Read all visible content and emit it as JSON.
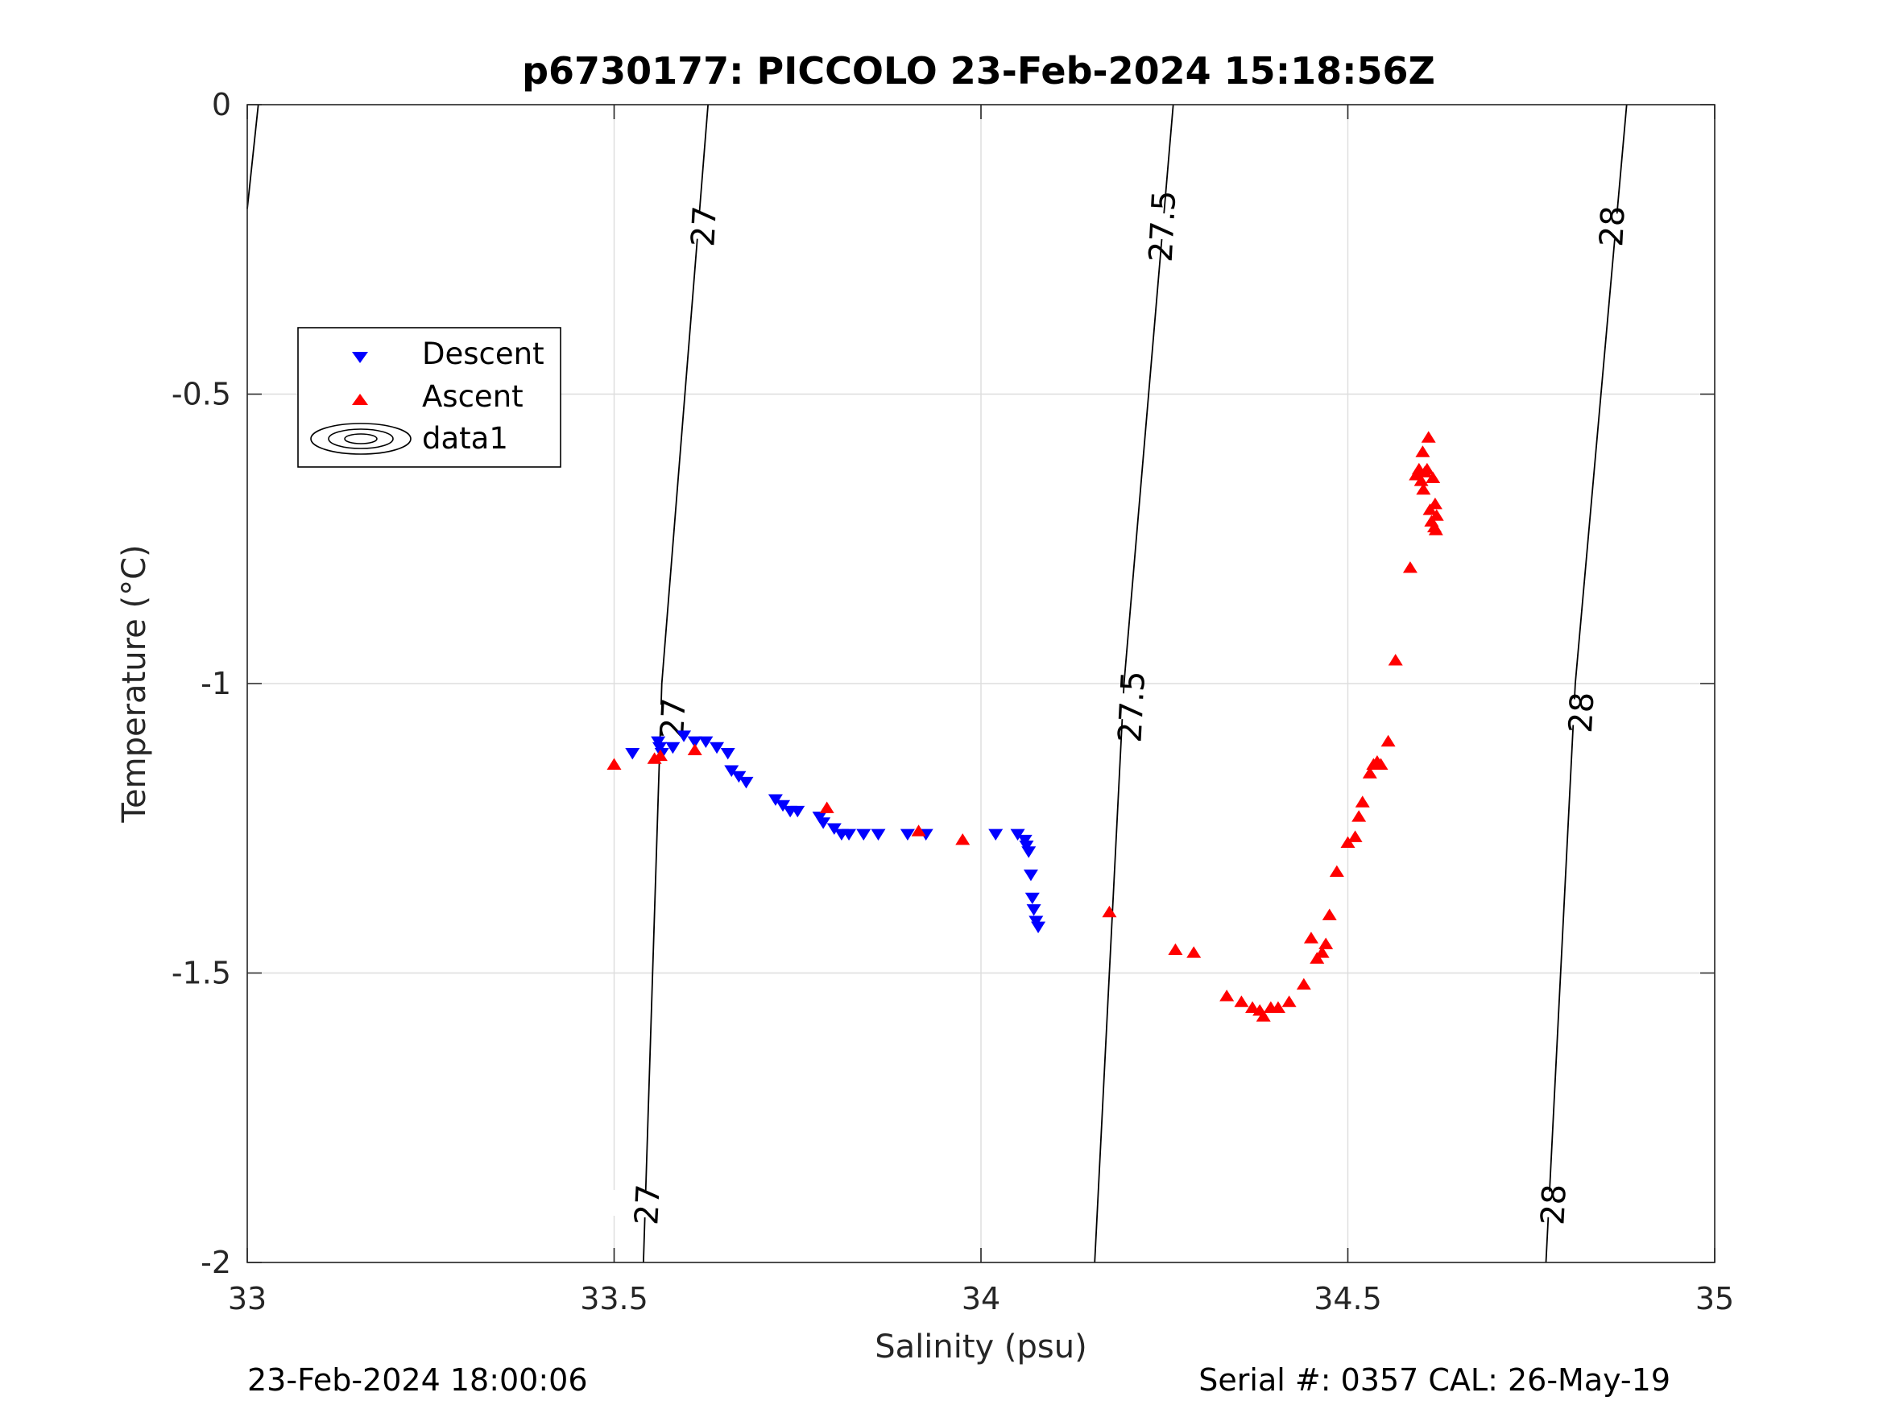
{
  "chart_data": {
    "type": "scatter",
    "title": "p6730177: PICCOLO 23-Feb-2024 15:18:56Z",
    "xlabel": "Salinity (psu)",
    "ylabel": "Temperature (°C)",
    "xlim": [
      33,
      35
    ],
    "ylim": [
      -2,
      0
    ],
    "xticks": [
      "33",
      "33.5",
      "34",
      "34.5",
      "35"
    ],
    "yticks": [
      "0",
      "-0.5",
      "-1",
      "-1.5",
      "-2"
    ],
    "grid": true,
    "legend_position": "upper-left",
    "legend": [
      "Descent",
      "Ascent",
      "data1"
    ],
    "footer_left": "23-Feb-2024 18:00:06",
    "footer_right": "Serial #: 0357  CAL: 26-May-19",
    "colors": {
      "descent": "#0000ff",
      "ascent": "#ff0000",
      "contour": "#000000",
      "grid": "#dddddd"
    },
    "contours": [
      {
        "level": "27",
        "points": [
          [
            33.54,
            -2.0
          ],
          [
            33.565,
            -1.0
          ],
          [
            33.628,
            0.0
          ]
        ]
      },
      {
        "level": "27.5",
        "points": [
          [
            34.155,
            -2.0
          ],
          [
            34.195,
            -1.0
          ],
          [
            34.262,
            0.0
          ]
        ]
      },
      {
        "level": "28",
        "points": [
          [
            34.77,
            -2.0
          ],
          [
            34.81,
            -1.0
          ],
          [
            34.88,
            0.0
          ]
        ]
      },
      {
        "level": "",
        "points": [
          [
            33.0,
            -0.18
          ],
          [
            33.015,
            0.0
          ]
        ]
      }
    ],
    "contour_labels": [
      {
        "text": "27",
        "s": 33.622,
        "t": -0.21
      },
      {
        "text": "27.5",
        "s": 34.247,
        "t": -0.21
      },
      {
        "text": "28",
        "s": 34.86,
        "t": -0.21
      },
      {
        "text": "27",
        "s": 33.58,
        "t": -1.06
      },
      {
        "text": "27.5",
        "s": 34.205,
        "t": -1.04
      },
      {
        "text": "28",
        "s": 34.818,
        "t": -1.05
      },
      {
        "text": "27",
        "s": 33.545,
        "t": -1.9
      },
      {
        "text": "28",
        "s": 34.78,
        "t": -1.9
      }
    ],
    "series": [
      {
        "name": "Descent",
        "marker": "triangle-down",
        "points": [
          [
            33.525,
            -1.12
          ],
          [
            33.56,
            -1.1
          ],
          [
            33.562,
            -1.11
          ],
          [
            33.565,
            -1.12
          ],
          [
            33.58,
            -1.11
          ],
          [
            33.595,
            -1.09
          ],
          [
            33.61,
            -1.1
          ],
          [
            33.625,
            -1.1
          ],
          [
            33.64,
            -1.11
          ],
          [
            33.655,
            -1.12
          ],
          [
            33.66,
            -1.15
          ],
          [
            33.67,
            -1.16
          ],
          [
            33.68,
            -1.17
          ],
          [
            33.72,
            -1.2
          ],
          [
            33.73,
            -1.21
          ],
          [
            33.74,
            -1.22
          ],
          [
            33.75,
            -1.22
          ],
          [
            33.78,
            -1.23
          ],
          [
            33.785,
            -1.24
          ],
          [
            33.8,
            -1.25
          ],
          [
            33.81,
            -1.26
          ],
          [
            33.82,
            -1.26
          ],
          [
            33.84,
            -1.26
          ],
          [
            33.86,
            -1.26
          ],
          [
            33.9,
            -1.26
          ],
          [
            33.925,
            -1.26
          ],
          [
            34.02,
            -1.26
          ],
          [
            34.05,
            -1.26
          ],
          [
            34.06,
            -1.27
          ],
          [
            34.062,
            -1.28
          ],
          [
            34.065,
            -1.29
          ],
          [
            34.068,
            -1.33
          ],
          [
            34.07,
            -1.37
          ],
          [
            34.072,
            -1.39
          ],
          [
            34.075,
            -1.41
          ],
          [
            34.078,
            -1.42
          ]
        ]
      },
      {
        "name": "Ascent",
        "marker": "triangle-up",
        "points": [
          [
            33.5,
            -1.14
          ],
          [
            33.555,
            -1.13
          ],
          [
            33.563,
            -1.125
          ],
          [
            33.61,
            -1.115
          ],
          [
            33.79,
            -1.215
          ],
          [
            33.915,
            -1.255
          ],
          [
            33.975,
            -1.27
          ],
          [
            34.175,
            -1.395
          ],
          [
            34.265,
            -1.46
          ],
          [
            34.29,
            -1.465
          ],
          [
            34.335,
            -1.54
          ],
          [
            34.355,
            -1.55
          ],
          [
            34.37,
            -1.56
          ],
          [
            34.38,
            -1.565
          ],
          [
            34.385,
            -1.575
          ],
          [
            34.395,
            -1.56
          ],
          [
            34.405,
            -1.56
          ],
          [
            34.42,
            -1.55
          ],
          [
            34.44,
            -1.52
          ],
          [
            34.45,
            -1.44
          ],
          [
            34.458,
            -1.475
          ],
          [
            34.465,
            -1.465
          ],
          [
            34.47,
            -1.45
          ],
          [
            34.475,
            -1.4
          ],
          [
            34.485,
            -1.325
          ],
          [
            34.5,
            -1.275
          ],
          [
            34.51,
            -1.265
          ],
          [
            34.515,
            -1.23
          ],
          [
            34.52,
            -1.205
          ],
          [
            34.53,
            -1.155
          ],
          [
            34.535,
            -1.14
          ],
          [
            34.54,
            -1.135
          ],
          [
            34.545,
            -1.14
          ],
          [
            34.555,
            -1.1
          ],
          [
            34.565,
            -0.96
          ],
          [
            34.585,
            -0.8
          ],
          [
            34.593,
            -0.64
          ],
          [
            34.597,
            -0.63
          ],
          [
            34.6,
            -0.65
          ],
          [
            34.602,
            -0.6
          ],
          [
            34.603,
            -0.665
          ],
          [
            34.605,
            -0.635
          ],
          [
            34.608,
            -0.63
          ],
          [
            34.61,
            -0.575
          ],
          [
            34.612,
            -0.7
          ],
          [
            34.614,
            -0.72
          ],
          [
            34.616,
            -0.645
          ],
          [
            34.618,
            -0.73
          ],
          [
            34.619,
            -0.69
          ],
          [
            34.62,
            -0.735
          ],
          [
            34.621,
            -0.71
          ]
        ]
      }
    ]
  }
}
